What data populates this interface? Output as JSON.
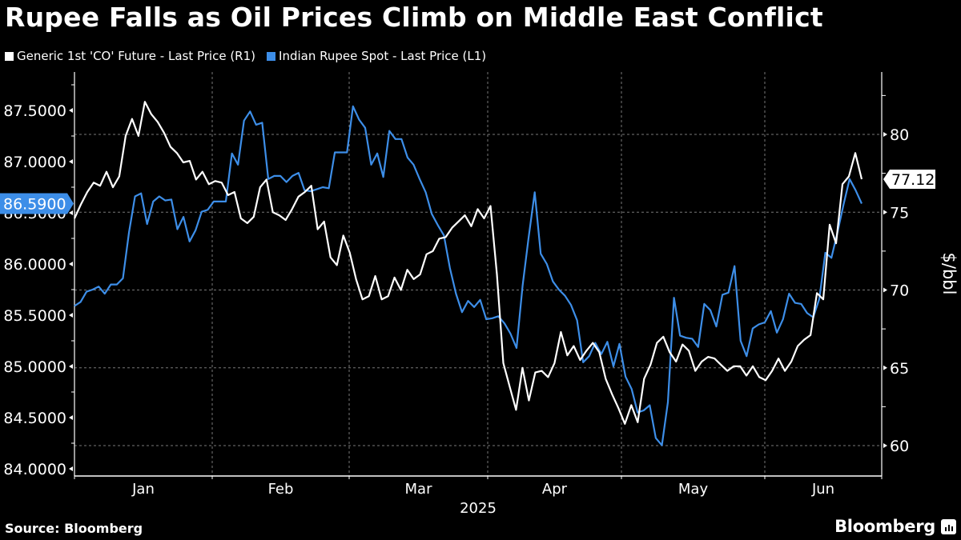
{
  "header": {
    "title": "Rupee Falls as Oil Prices Climb on Middle East Conflict"
  },
  "legend": [
    {
      "label": "Generic 1st 'CO' Future - Last Price (R1)",
      "color": "#ffffff"
    },
    {
      "label": "Indian Rupee Spot - Last Price (L1)",
      "color": "#3d8ee8"
    }
  ],
  "footer": {
    "source": "Source: Bloomberg",
    "brand": "Bloomberg"
  },
  "colors": {
    "background": "#000000",
    "oil": "#ffffff",
    "inr": "#3d8ee8",
    "grid": "#6b6b6b",
    "axis": "#ffffff"
  },
  "chart_data": {
    "type": "line",
    "title": "Rupee Falls as Oil Prices Climb on Middle East Conflict",
    "xlabel": "2025",
    "x_ticks": [
      "Jan",
      "Feb",
      "Mar",
      "Apr",
      "May",
      "Jun"
    ],
    "left_axis": {
      "label": "",
      "ticks": [
        "87.5000",
        "87.0000",
        "86.5000",
        "86.0000",
        "85.5000",
        "85.0000",
        "84.5000",
        "84.0000"
      ],
      "ylim": [
        83.98,
        87.87
      ],
      "last_value_label": "86.5900"
    },
    "right_axis": {
      "label": "$/bbl",
      "ticks": [
        "80",
        "75",
        "70",
        "65",
        "60"
      ],
      "ylim": [
        58.1,
        83.7
      ],
      "last_value_label": "77.12"
    },
    "grid": true,
    "legend_position": "top-left",
    "series": [
      {
        "name": "Generic 1st 'CO' Future - Last Price (R1)",
        "axis": "right",
        "color": "#ffffff",
        "values": [
          74.6,
          75.5,
          76.3,
          76.9,
          76.7,
          77.6,
          76.6,
          77.3,
          79.9,
          81.0,
          79.9,
          82.1,
          81.3,
          80.8,
          80.1,
          79.2,
          78.8,
          78.2,
          78.3,
          77.1,
          77.6,
          76.8,
          77.0,
          76.9,
          76.1,
          76.3,
          74.6,
          74.3,
          74.7,
          76.6,
          77.1,
          75.0,
          74.8,
          74.5,
          75.2,
          76.0,
          76.3,
          76.7,
          73.9,
          74.4,
          72.1,
          71.6,
          73.5,
          72.4,
          70.7,
          69.4,
          69.6,
          70.9,
          69.4,
          69.6,
          70.8,
          70.0,
          71.3,
          70.7,
          71.0,
          72.3,
          72.5,
          73.3,
          73.4,
          74.0,
          74.4,
          74.8,
          74.1,
          75.2,
          74.6,
          75.4,
          71.0,
          65.3,
          63.8,
          62.3,
          65.0,
          62.9,
          64.7,
          64.8,
          64.4,
          65.3,
          67.3,
          65.8,
          66.4,
          65.5,
          66.1,
          66.6,
          66.0,
          64.3,
          63.3,
          62.4,
          61.4,
          62.6,
          61.5,
          64.3,
          65.2,
          66.6,
          67.0,
          66.0,
          65.4,
          66.5,
          66.1,
          64.8,
          65.4,
          65.7,
          65.6,
          65.2,
          64.8,
          65.1,
          65.1,
          64.5,
          65.1,
          64.4,
          64.2,
          64.8,
          65.6,
          64.8,
          65.4,
          66.4,
          66.8,
          67.1,
          69.8,
          69.4,
          74.2,
          73.0,
          76.8,
          77.3,
          78.8,
          77.12
        ]
      },
      {
        "name": "Indian Rupee Spot - Last Price (L1)",
        "axis": "left",
        "color": "#3d8ee8",
        "values": [
          85.59,
          85.63,
          85.73,
          85.75,
          85.78,
          85.71,
          85.8,
          85.8,
          85.86,
          86.31,
          86.66,
          86.69,
          86.39,
          86.61,
          86.66,
          86.62,
          86.63,
          86.34,
          86.46,
          86.22,
          86.33,
          86.51,
          86.53,
          86.61,
          86.61,
          86.61,
          87.08,
          86.97,
          87.4,
          87.49,
          87.36,
          87.38,
          86.83,
          86.86,
          86.86,
          86.8,
          86.86,
          86.89,
          86.72,
          86.71,
          86.73,
          86.75,
          86.74,
          87.09,
          87.09,
          87.09,
          87.54,
          87.41,
          87.33,
          86.97,
          87.08,
          86.85,
          87.3,
          87.22,
          87.22,
          87.04,
          86.97,
          86.83,
          86.7,
          86.49,
          86.38,
          86.28,
          85.96,
          85.71,
          85.53,
          85.64,
          85.58,
          85.65,
          85.46,
          85.47,
          85.49,
          85.42,
          85.32,
          85.18,
          85.79,
          86.26,
          86.7,
          86.1,
          86.0,
          85.83,
          85.75,
          85.69,
          85.6,
          85.45,
          85.04,
          85.1,
          85.23,
          85.12,
          85.24,
          85.0,
          85.22,
          84.9,
          84.78,
          84.55,
          84.57,
          84.62,
          84.3,
          84.23,
          84.65,
          85.67,
          85.3,
          85.28,
          85.27,
          85.19,
          85.61,
          85.55,
          85.39,
          85.7,
          85.72,
          85.98,
          85.25,
          85.1,
          85.37,
          85.41,
          85.43,
          85.54,
          85.33,
          85.46,
          85.71,
          85.62,
          85.61,
          85.52,
          85.48,
          85.66,
          86.11,
          86.06,
          86.31,
          86.58,
          86.83,
          86.72,
          86.59
        ]
      }
    ]
  }
}
